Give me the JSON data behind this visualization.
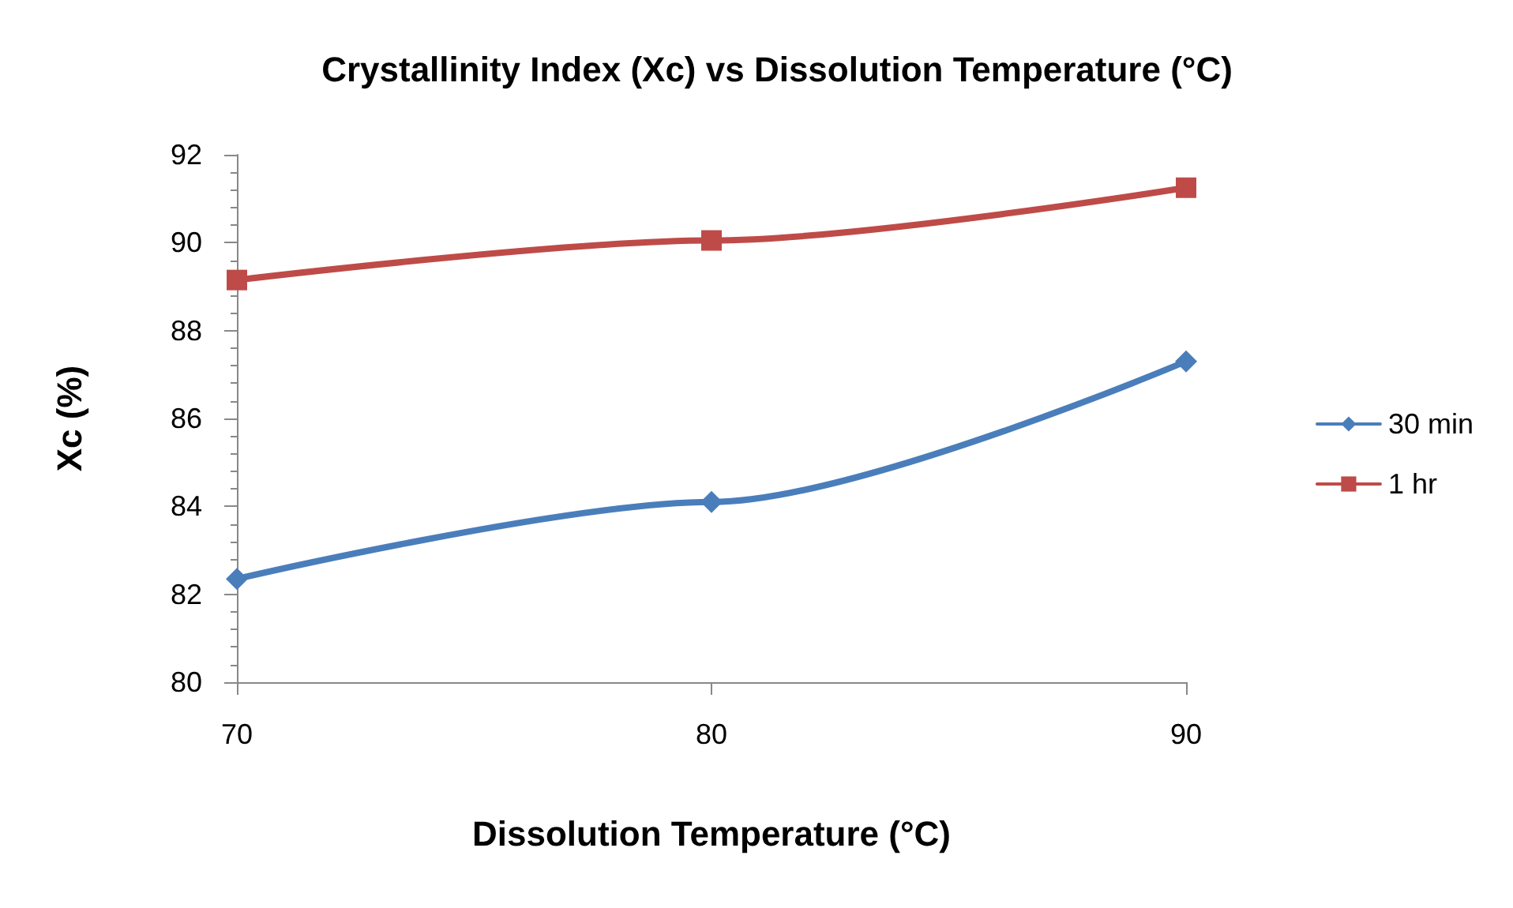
{
  "chart_data": {
    "type": "line",
    "title": "Crystallinity Index (Xc) vs Dissolution Temperature (°C)",
    "xlabel": "Dissolution Temperature (°C)",
    "ylabel": "Xc (%)",
    "categories": [
      "70",
      "80",
      "90"
    ],
    "series": [
      {
        "name": "30 min",
        "color": "#4a7ebb",
        "marker": "diamond",
        "values": [
          82.35,
          84.1,
          87.3
        ]
      },
      {
        "name": "1 hr",
        "color": "#be4b48",
        "marker": "square",
        "values": [
          89.15,
          90.05,
          91.25
        ]
      }
    ],
    "ylim": [
      80,
      92
    ],
    "yticks": [
      80,
      82,
      84,
      86,
      88,
      90,
      92
    ],
    "grid": false,
    "legend": "right"
  }
}
